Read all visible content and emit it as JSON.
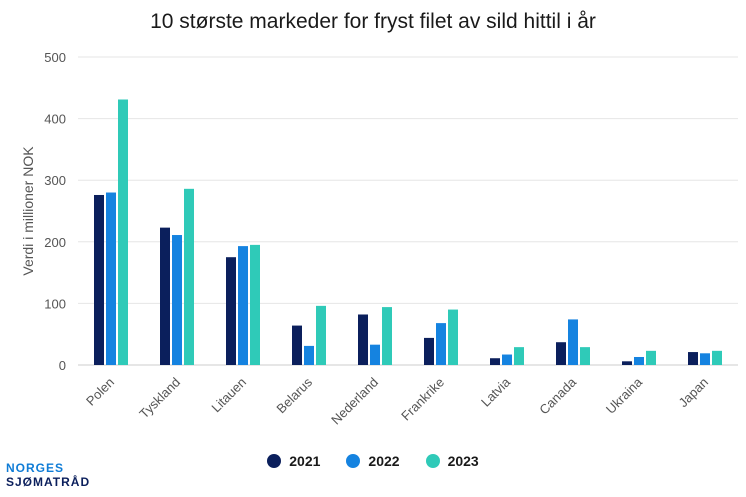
{
  "chart_data": {
    "type": "bar",
    "title": "10 største markeder for fryst filet av sild hittil i år",
    "ylabel": "Verdi i millioner NOK",
    "xlabel": "",
    "ylim": [
      0,
      500
    ],
    "yticks": [
      0,
      100,
      200,
      300,
      400,
      500
    ],
    "grid": true,
    "legend_position": "bottom",
    "categories": [
      "Polen",
      "Tyskland",
      "Litauen",
      "Belarus",
      "Nederland",
      "Frankrike",
      "Latvia",
      "Canada",
      "Ukraina",
      "Japan"
    ],
    "series": [
      {
        "name": "2021",
        "color": "#0b1f5c",
        "values": [
          276,
          223,
          175,
          64,
          82,
          44,
          11,
          37,
          6,
          21
        ]
      },
      {
        "name": "2022",
        "color": "#1583e0",
        "values": [
          280,
          211,
          193,
          31,
          33,
          68,
          17,
          74,
          13,
          19
        ]
      },
      {
        "name": "2023",
        "color": "#2fcab8",
        "values": [
          431,
          286,
          195,
          96,
          94,
          90,
          29,
          29,
          23,
          23
        ]
      }
    ]
  },
  "branding": {
    "line1": "NORGES",
    "line2": "SJØMATRÅD"
  }
}
